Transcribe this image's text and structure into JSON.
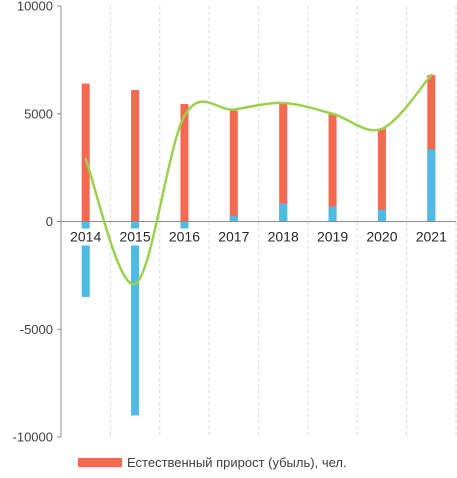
{
  "chart_data": {
    "type": "bar",
    "categories": [
      "2014",
      "2015",
      "2016",
      "2017",
      "2018",
      "2019",
      "2020",
      "2021"
    ],
    "ylim": [
      -10000,
      10000
    ],
    "yticks": [
      -10000,
      -5000,
      0,
      5000,
      10000
    ],
    "ytick_labels": [
      "-10000",
      "-5000",
      "0",
      "5000",
      "10000"
    ],
    "series": [
      {
        "name": "Естественный прирост (убыль), чел.",
        "chart": "bar",
        "color": "#F4694F",
        "values": [
          6400,
          6100,
          5450,
          5150,
          5500,
          5000,
          4300,
          6800
        ]
      },
      {
        "chart": "bar",
        "color": "#4DBBE3",
        "values": [
          -3500,
          -9000,
          -900,
          250,
          850,
          700,
          550,
          3350
        ]
      },
      {
        "chart": "line",
        "color": "#9BD14F",
        "smooth": true,
        "values": [
          2900,
          -2900,
          4900,
          5200,
          5500,
          5000,
          4300,
          6800
        ]
      }
    ],
    "grid": {
      "horizontal": false,
      "vertical": "dashed"
    },
    "legend": {
      "placement": "bottom"
    }
  }
}
